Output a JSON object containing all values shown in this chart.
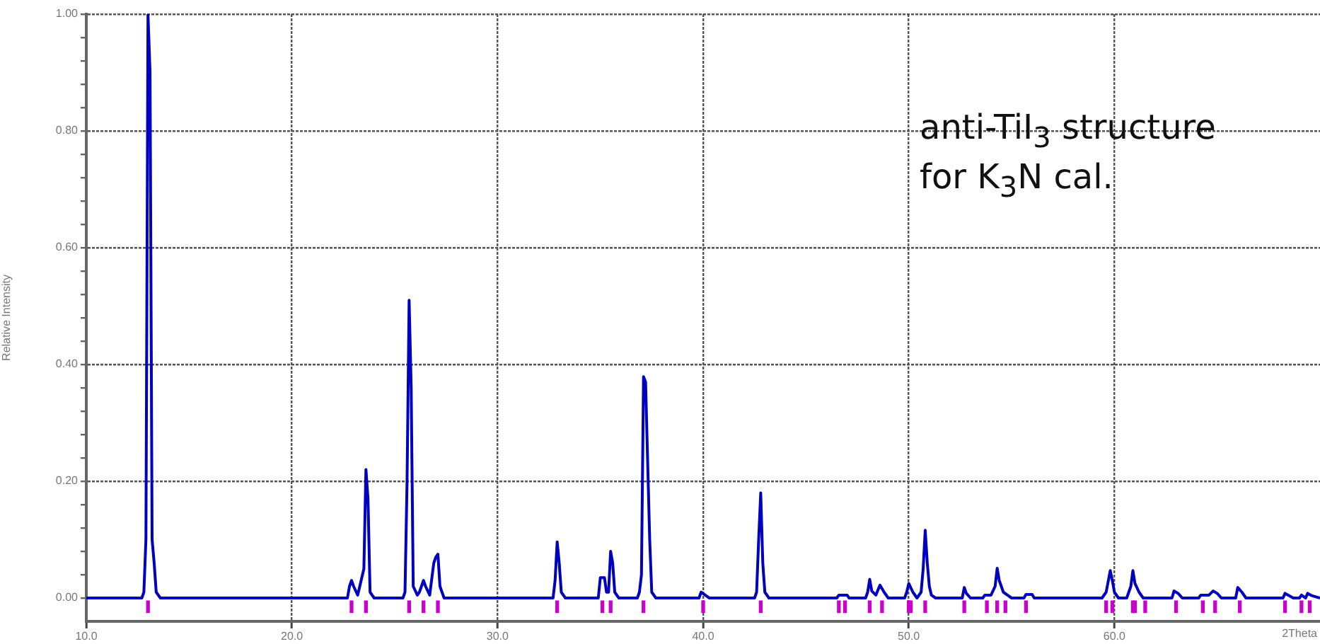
{
  "chart_data": {
    "type": "line",
    "ylabel": "Relative Intensity",
    "xlabel": "2Theta",
    "annotations": [
      "anti-TiI$_{3}$ structure",
      "for K$_{3}$N cal."
    ],
    "xlim": [
      10,
      70
    ],
    "xticks": [
      {
        "value": 10,
        "label": "10.0"
      },
      {
        "value": 20,
        "label": "20.0"
      },
      {
        "value": 30,
        "label": "30.0"
      },
      {
        "value": 40,
        "label": "40.0"
      },
      {
        "value": 50,
        "label": "50.0"
      },
      {
        "value": 60,
        "label": "60.0"
      }
    ],
    "ylim": [
      -0.04,
      1.0
    ],
    "yticks": [
      {
        "value": 0,
        "label": "0.00"
      },
      {
        "value": 0.04,
        "label": null
      },
      {
        "value": 0.08,
        "label": null
      },
      {
        "value": 0.12,
        "label": null
      },
      {
        "value": 0.16,
        "label": null
      },
      {
        "value": 0.2,
        "label": "0.20"
      },
      {
        "value": 0.24,
        "label": null
      },
      {
        "value": 0.28,
        "label": null
      },
      {
        "value": 0.32,
        "label": null
      },
      {
        "value": 0.36,
        "label": null
      },
      {
        "value": 0.4,
        "label": "0.40"
      },
      {
        "value": 0.44,
        "label": null
      },
      {
        "value": 0.48,
        "label": null
      },
      {
        "value": 0.52,
        "label": null
      },
      {
        "value": 0.56,
        "label": null
      },
      {
        "value": 0.6,
        "label": "0.60"
      },
      {
        "value": 0.64,
        "label": null
      },
      {
        "value": 0.68,
        "label": null
      },
      {
        "value": 0.72,
        "label": null
      },
      {
        "value": 0.76,
        "label": null
      },
      {
        "value": 0.8,
        "label": "0.80"
      },
      {
        "value": 0.84,
        "label": null
      },
      {
        "value": 0.88,
        "label": null
      },
      {
        "value": 0.92,
        "label": null
      },
      {
        "value": 0.96,
        "label": null
      },
      {
        "value": 1.0,
        "label": "1.00"
      }
    ],
    "grid": true,
    "legend": false,
    "line_style": "solid",
    "series": [
      {
        "color": "#0000c0",
        "x": [
          10,
          12.7,
          12.8,
          12.9,
          13.0,
          13.1,
          13.2,
          13.3,
          13.4,
          13.6,
          22.7,
          22.8,
          22.9,
          23.0,
          23.2,
          23.3,
          23.5,
          23.6,
          23.7,
          23.8,
          24.0,
          25.4,
          25.5,
          25.6,
          25.7,
          25.8,
          25.9,
          26.1,
          26.2,
          26.4,
          26.5,
          26.7,
          26.9,
          27.0,
          27.1,
          27.2,
          27.3,
          27.4,
          32.7,
          32.8,
          32.9,
          33.0,
          33.1,
          33.3,
          34.9,
          35.0,
          35.2,
          35.3,
          35.4,
          35.5,
          35.6,
          35.7,
          35.9,
          36.8,
          36.9,
          37.0,
          37.1,
          37.2,
          37.4,
          37.5,
          37.7,
          39.8,
          39.9,
          40.1,
          40.3,
          42.5,
          42.6,
          42.7,
          42.8,
          42.9,
          43.0,
          43.2,
          46.5,
          46.6,
          47.0,
          47.1,
          47.9,
          48.0,
          48.1,
          48.2,
          48.4,
          48.6,
          48.8,
          49.0,
          49.8,
          49.9,
          50.0,
          50.2,
          50.4,
          50.6,
          50.7,
          50.8,
          50.9,
          51.0,
          51.1,
          51.3,
          52.6,
          52.7,
          52.8,
          53.0,
          53.6,
          53.7,
          54.0,
          54.2,
          54.3,
          54.4,
          54.6,
          54.8,
          55.0,
          55.6,
          55.7,
          56.0,
          56.1,
          59.4,
          59.6,
          59.8,
          59.9,
          60.0,
          60.2,
          60.6,
          60.8,
          60.9,
          61.0,
          61.2,
          61.4,
          62.8,
          62.9,
          63.1,
          63.3,
          64.1,
          64.2,
          64.6,
          64.8,
          65.0,
          65.2,
          65.9,
          66.0,
          66.2,
          66.4,
          68.2,
          68.3,
          68.5,
          68.7,
          69.0,
          69.1,
          69.3,
          69.4,
          69.6,
          70
        ],
        "values": [
          0,
          0,
          0.01,
          0.1,
          1.0,
          0.9,
          0.1,
          0.06,
          0.01,
          0,
          0,
          0.02,
          0.03,
          0.02,
          0.005,
          0.02,
          0.05,
          0.22,
          0.17,
          0.01,
          0,
          0,
          0.01,
          0.2,
          0.51,
          0.36,
          0.02,
          0.005,
          0.01,
          0.03,
          0.02,
          0.005,
          0.06,
          0.07,
          0.075,
          0.02,
          0.01,
          0,
          0,
          0.03,
          0.096,
          0.06,
          0.01,
          0,
          0,
          0.035,
          0.035,
          0.01,
          0.01,
          0.08,
          0.06,
          0.01,
          0,
          0,
          0.01,
          0.04,
          0.379,
          0.37,
          0.1,
          0.01,
          0,
          0,
          0.01,
          0.005,
          0,
          0,
          0.01,
          0.1,
          0.18,
          0.06,
          0.01,
          0,
          0,
          0.005,
          0.005,
          0,
          0,
          0.01,
          0.032,
          0.012,
          0.005,
          0.022,
          0.01,
          0,
          0,
          0.01,
          0.025,
          0.01,
          0,
          0.01,
          0.05,
          0.116,
          0.06,
          0.02,
          0.005,
          0,
          0,
          0.018,
          0.008,
          0,
          0,
          0.005,
          0.005,
          0.02,
          0.051,
          0.03,
          0.01,
          0.005,
          0,
          0,
          0.006,
          0.006,
          0,
          0,
          0.01,
          0.047,
          0.03,
          0.01,
          0,
          0,
          0.02,
          0.047,
          0.025,
          0.01,
          0,
          0,
          0.012,
          0.008,
          0,
          0,
          0.005,
          0.005,
          0.012,
          0.008,
          0,
          0,
          0.018,
          0.01,
          0,
          0,
          0.008,
          0.004,
          0,
          0,
          0.005,
          0,
          0.008,
          0.004,
          0
        ]
      },
      {
        "type": "bar",
        "color": "#cc00cc",
        "base": [
          -0.025,
          -0.025,
          -0.025,
          -0.025,
          -0.025,
          -0.025,
          -0.025,
          -0.025,
          -0.025,
          -0.025,
          -0.025,
          -0.025,
          -0.025,
          -0.025,
          -0.025,
          -0.025,
          -0.025,
          -0.025,
          -0.025,
          -0.025,
          -0.025,
          -0.025,
          -0.025,
          -0.025,
          -0.025,
          -0.025,
          -0.025,
          -0.025,
          -0.025,
          -0.025,
          -0.025,
          -0.025,
          -0.025,
          -0.025,
          -0.025,
          -0.025
        ],
        "x": [
          13.0,
          22.9,
          23.6,
          25.7,
          26.4,
          27.1,
          32.9,
          35.1,
          35.5,
          37.1,
          40.0,
          42.8,
          46.6,
          46.9,
          48.1,
          48.7,
          50.0,
          50.1,
          50.8,
          52.7,
          53.8,
          54.3,
          54.7,
          55.7,
          59.6,
          59.9,
          60.9,
          61.0,
          61.5,
          63.0,
          64.3,
          64.9,
          66.1,
          68.3,
          69.1,
          69.5
        ],
        "values": [
          0.02,
          0.02,
          0.02,
          0.02,
          0.02,
          0.02,
          0.02,
          0.02,
          0.02,
          0.02,
          0.02,
          0.02,
          0.02,
          0.02,
          0.02,
          0.02,
          0.02,
          0.02,
          0.02,
          0.02,
          0.02,
          0.02,
          0.02,
          0.02,
          0.02,
          0.02,
          0.02,
          0.02,
          0.02,
          0.02,
          0.02,
          0.02,
          0.02,
          0.02,
          0.02,
          0.02
        ]
      }
    ]
  }
}
